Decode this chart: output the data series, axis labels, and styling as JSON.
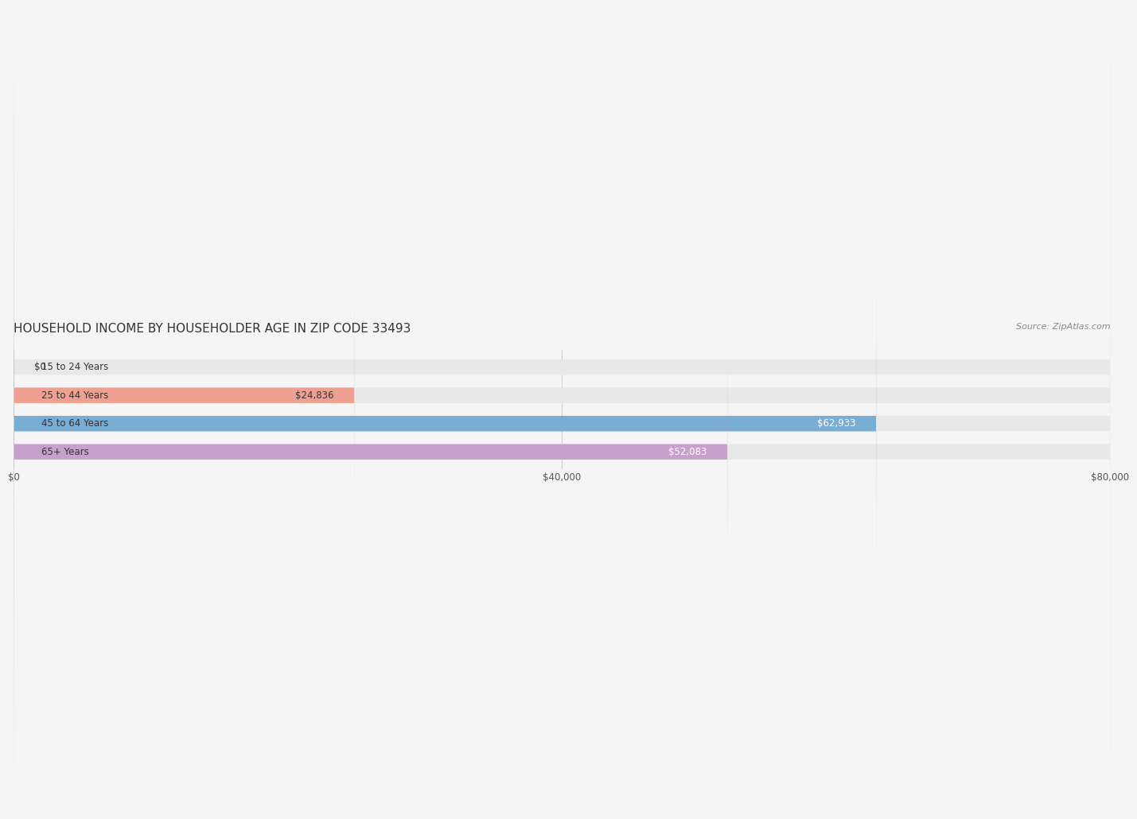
{
  "title": "HOUSEHOLD INCOME BY HOUSEHOLDER AGE IN ZIP CODE 33493",
  "source": "Source: ZipAtlas.com",
  "categories": [
    "15 to 24 Years",
    "25 to 44 Years",
    "45 to 64 Years",
    "65+ Years"
  ],
  "values": [
    0,
    24836,
    62933,
    52083
  ],
  "bar_colors": [
    "#f5c98a",
    "#f0a090",
    "#7aadd4",
    "#c8a0cc"
  ],
  "label_colors": [
    "#333333",
    "#333333",
    "#ffffff",
    "#ffffff"
  ],
  "xlim": [
    0,
    80000
  ],
  "xticks": [
    0,
    40000,
    80000
  ],
  "xtick_labels": [
    "$0",
    "$40,000",
    "$80,000"
  ],
  "background_color": "#f5f5f5",
  "bar_background_color": "#e8e8e8",
  "bar_height": 0.55,
  "title_fontsize": 11,
  "source_fontsize": 8,
  "label_fontsize": 8.5,
  "tick_fontsize": 8.5,
  "category_fontsize": 8.5
}
